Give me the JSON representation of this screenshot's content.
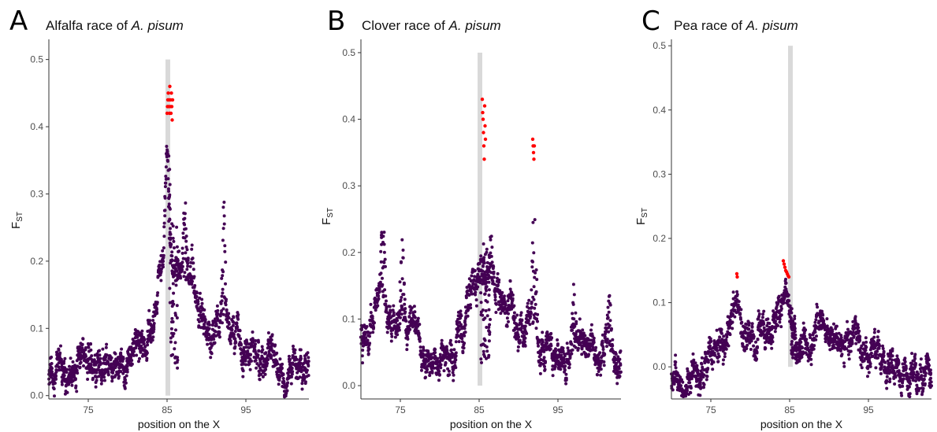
{
  "panels": [
    {
      "letter": "A",
      "title_prefix": "Alfalfa race of ",
      "title_species": "A. pisum",
      "xlabel": "position on the X",
      "ylabel_main": "F",
      "ylabel_sub": "ST",
      "x_ticks": [
        "75",
        "85",
        "95"
      ],
      "y_ticks": [
        "0.0",
        "0.1",
        "0.2",
        "0.3",
        "0.4",
        "0.5"
      ]
    },
    {
      "letter": "B",
      "title_prefix": "Clover race of ",
      "title_species": "A. pisum",
      "xlabel": "position on the X",
      "ylabel_main": "F",
      "ylabel_sub": "ST",
      "x_ticks": [
        "75",
        "85",
        "95"
      ],
      "y_ticks": [
        "0.0",
        "0.1",
        "0.2",
        "0.3",
        "0.4",
        "0.5"
      ]
    },
    {
      "letter": "C",
      "title_prefix": "Pea race of ",
      "title_species": "A. pisum",
      "xlabel": "position on the X",
      "ylabel_main": "F",
      "ylabel_sub": "ST",
      "x_ticks": [
        "75",
        "85",
        "95"
      ],
      "y_ticks": [
        "0.0",
        "0.1",
        "0.2",
        "0.3",
        "0.4",
        "0.5"
      ]
    }
  ],
  "chart_data": [
    {
      "type": "scatter",
      "title": "Alfalfa race of A. pisum",
      "xlabel": "position on the X",
      "ylabel": "FST",
      "xlim": [
        70,
        103
      ],
      "ylim": [
        -0.005,
        0.53
      ],
      "x_ticks": [
        75,
        85,
        95
      ],
      "y_ticks": [
        0.0,
        0.1,
        0.2,
        0.3,
        0.4,
        0.5
      ],
      "highlight_band": [
        84.8,
        85.2
      ],
      "colors": {
        "point": "#440154",
        "outlier": "#ff0000",
        "band": "#d9d9d9"
      },
      "profile": [
        [
          70,
          0.03
        ],
        [
          72,
          0.04
        ],
        [
          74,
          0.05
        ],
        [
          76,
          0.055
        ],
        [
          78,
          0.06
        ],
        [
          80,
          0.065
        ],
        [
          82,
          0.075
        ],
        [
          83.5,
          0.1
        ],
        [
          84.5,
          0.22
        ],
        [
          85,
          0.38
        ],
        [
          85.5,
          0.2
        ],
        [
          86.5,
          0.19
        ],
        [
          88,
          0.16
        ],
        [
          89,
          0.12
        ],
        [
          90,
          0.1
        ],
        [
          91.5,
          0.11
        ],
        [
          92.5,
          0.1
        ],
        [
          94,
          0.08
        ],
        [
          96,
          0.06
        ],
        [
          98,
          0.05
        ],
        [
          100,
          0.04
        ],
        [
          103,
          0.05
        ]
      ],
      "peaks": [
        [
          87.3,
          0.33
        ],
        [
          92.2,
          0.31
        ],
        [
          88.2,
          0.23
        ]
      ],
      "outliers": [
        [
          85.0,
          0.42
        ],
        [
          85.05,
          0.43
        ],
        [
          85.1,
          0.44
        ],
        [
          85.15,
          0.45
        ],
        [
          85.2,
          0.43
        ],
        [
          85.25,
          0.44
        ],
        [
          85.3,
          0.42
        ],
        [
          85.35,
          0.46
        ],
        [
          85.4,
          0.43
        ],
        [
          85.45,
          0.44
        ],
        [
          85.5,
          0.42
        ],
        [
          85.55,
          0.45
        ],
        [
          85.6,
          0.43
        ],
        [
          85.65,
          0.41
        ],
        [
          85.7,
          0.44
        ]
      ]
    },
    {
      "type": "scatter",
      "title": "Clover race of A. pisum",
      "xlabel": "position on the X",
      "ylabel": "FST",
      "xlim": [
        70,
        103
      ],
      "ylim": [
        -0.02,
        0.52
      ],
      "x_ticks": [
        75,
        85,
        95
      ],
      "y_ticks": [
        0.0,
        0.1,
        0.2,
        0.3,
        0.4,
        0.5
      ],
      "highlight_band": [
        84.8,
        85.2
      ],
      "colors": {
        "point": "#440154",
        "outlier": "#ff0000",
        "band": "#d9d9d9"
      },
      "profile": [
        [
          70,
          0.06
        ],
        [
          71.5,
          0.1
        ],
        [
          72.5,
          0.14
        ],
        [
          73.5,
          0.09
        ],
        [
          75,
          0.08
        ],
        [
          76.5,
          0.1
        ],
        [
          78,
          0.04
        ],
        [
          80,
          0.03
        ],
        [
          82,
          0.05
        ],
        [
          83.5,
          0.1
        ],
        [
          84.5,
          0.16
        ],
        [
          85.5,
          0.17
        ],
        [
          87,
          0.14
        ],
        [
          88.5,
          0.11
        ],
        [
          90,
          0.09
        ],
        [
          91.5,
          0.1
        ],
        [
          92.5,
          0.06
        ],
        [
          94,
          0.04
        ],
        [
          96,
          0.03
        ],
        [
          97.5,
          0.06
        ],
        [
          99,
          0.05
        ],
        [
          103,
          0.05
        ]
      ],
      "peaks": [
        [
          72.8,
          0.29
        ],
        [
          75.2,
          0.27
        ],
        [
          86.5,
          0.24
        ],
        [
          92.0,
          0.32
        ],
        [
          97.0,
          0.17
        ],
        [
          101.5,
          0.16
        ]
      ],
      "outliers": [
        [
          85.4,
          0.43
        ],
        [
          85.45,
          0.41
        ],
        [
          85.5,
          0.4
        ],
        [
          85.55,
          0.38
        ],
        [
          85.6,
          0.36
        ],
        [
          85.65,
          0.34
        ],
        [
          85.7,
          0.42
        ],
        [
          85.75,
          0.39
        ],
        [
          85.8,
          0.37
        ],
        [
          91.8,
          0.37
        ],
        [
          91.85,
          0.36
        ],
        [
          91.9,
          0.35
        ],
        [
          91.95,
          0.34
        ],
        [
          92.0,
          0.36
        ]
      ]
    },
    {
      "type": "scatter",
      "title": "Pea race of A. pisum",
      "xlabel": "position on the X",
      "ylabel": "FST",
      "xlim": [
        70,
        103
      ],
      "ylim": [
        -0.05,
        0.51
      ],
      "x_ticks": [
        75,
        85,
        95
      ],
      "y_ticks": [
        0.0,
        0.1,
        0.2,
        0.3,
        0.4,
        0.5
      ],
      "highlight_band": [
        84.8,
        85.2
      ],
      "colors": {
        "point": "#440154",
        "outlier": "#ff0000",
        "band": "#d9d9d9"
      },
      "profile": [
        [
          70,
          -0.015
        ],
        [
          72,
          -0.02
        ],
        [
          74,
          -0.01
        ],
        [
          75.5,
          0.03
        ],
        [
          77,
          0.06
        ],
        [
          78.5,
          0.08
        ],
        [
          79.5,
          0.06
        ],
        [
          81,
          0.05
        ],
        [
          82.5,
          0.06
        ],
        [
          84,
          0.1
        ],
        [
          85,
          0.08
        ],
        [
          86,
          0.03
        ],
        [
          88,
          0.05
        ],
        [
          90,
          0.06
        ],
        [
          92,
          0.04
        ],
        [
          94,
          0.02
        ],
        [
          96,
          0.01
        ],
        [
          98,
          0.0
        ],
        [
          100,
          -0.01
        ],
        [
          103,
          -0.01
        ]
      ],
      "peaks": [
        [
          78.3,
          0.13
        ],
        [
          84.5,
          0.14
        ],
        [
          89.0,
          0.1
        ]
      ],
      "outliers": [
        [
          78.3,
          0.145
        ],
        [
          78.35,
          0.14
        ],
        [
          84.2,
          0.165
        ],
        [
          84.3,
          0.16
        ],
        [
          84.4,
          0.155
        ],
        [
          84.5,
          0.15
        ],
        [
          84.6,
          0.148
        ],
        [
          84.7,
          0.145
        ],
        [
          84.8,
          0.142
        ],
        [
          84.9,
          0.14
        ]
      ]
    }
  ]
}
